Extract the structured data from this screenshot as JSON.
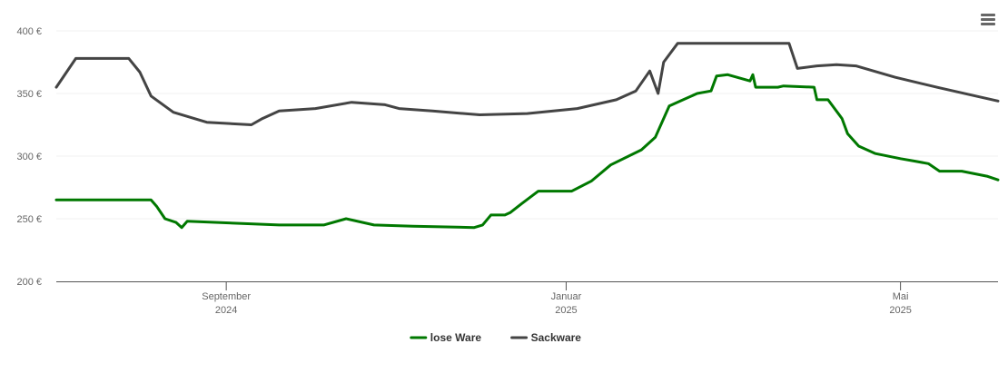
{
  "menu": {
    "icon": "hamburger-menu-icon"
  },
  "chart_data": {
    "type": "line",
    "title": "",
    "xlabel": "",
    "ylabel": "",
    "ylim": [
      200,
      400
    ],
    "y_ticks": [
      "200 €",
      "250 €",
      "300 €",
      "350 €",
      "400 €"
    ],
    "x_ticks": [
      {
        "date": "2024-09-01",
        "month": "September",
        "year": "2024"
      },
      {
        "date": "2025-01-01",
        "month": "Januar",
        "year": "2025"
      },
      {
        "date": "2025-05-01",
        "month": "Mai",
        "year": "2025"
      }
    ],
    "x_range": [
      "2024-07-02",
      "2025-06-05"
    ],
    "grid": "horizontal",
    "legend_position": "bottom-center",
    "series": [
      {
        "name": "lose Ware",
        "color": "#007800",
        "points": [
          [
            "2024-07-02",
            265
          ],
          [
            "2024-08-05",
            265
          ],
          [
            "2024-08-07",
            260
          ],
          [
            "2024-08-10",
            250
          ],
          [
            "2024-08-14",
            247
          ],
          [
            "2024-08-16",
            243
          ],
          [
            "2024-08-18",
            248
          ],
          [
            "2024-09-20",
            245
          ],
          [
            "2024-10-06",
            245
          ],
          [
            "2024-10-14",
            250
          ],
          [
            "2024-10-24",
            245
          ],
          [
            "2024-11-07",
            244
          ],
          [
            "2024-11-29",
            243
          ],
          [
            "2024-12-02",
            245
          ],
          [
            "2024-12-05",
            253
          ],
          [
            "2024-12-10",
            253
          ],
          [
            "2024-12-12",
            255
          ],
          [
            "2024-12-16",
            262
          ],
          [
            "2024-12-22",
            272
          ],
          [
            "2025-01-03",
            272
          ],
          [
            "2025-01-10",
            280
          ],
          [
            "2025-01-17",
            293
          ],
          [
            "2025-01-28",
            305
          ],
          [
            "2025-02-02",
            315
          ],
          [
            "2025-02-05",
            330
          ],
          [
            "2025-02-07",
            340
          ],
          [
            "2025-02-12",
            345
          ],
          [
            "2025-02-17",
            350
          ],
          [
            "2025-02-22",
            352
          ],
          [
            "2025-02-24",
            364
          ],
          [
            "2025-02-28",
            365
          ],
          [
            "2025-03-08",
            360
          ],
          [
            "2025-03-09",
            365
          ],
          [
            "2025-03-10",
            355
          ],
          [
            "2025-03-18",
            355
          ],
          [
            "2025-03-20",
            356
          ],
          [
            "2025-03-31",
            355
          ],
          [
            "2025-04-01",
            345
          ],
          [
            "2025-04-05",
            345
          ],
          [
            "2025-04-10",
            330
          ],
          [
            "2025-04-12",
            318
          ],
          [
            "2025-04-16",
            308
          ],
          [
            "2025-04-22",
            302
          ],
          [
            "2025-05-01",
            298
          ],
          [
            "2025-05-06",
            296
          ],
          [
            "2025-05-11",
            294
          ],
          [
            "2025-05-15",
            288
          ],
          [
            "2025-05-23",
            288
          ],
          [
            "2025-06-01",
            284
          ],
          [
            "2025-06-05",
            281
          ]
        ]
      },
      {
        "name": "Sackware",
        "color": "#444444",
        "points": [
          [
            "2024-07-02",
            355
          ],
          [
            "2024-07-09",
            378
          ],
          [
            "2024-07-28",
            378
          ],
          [
            "2024-08-01",
            367
          ],
          [
            "2024-08-05",
            348
          ],
          [
            "2024-08-13",
            335
          ],
          [
            "2024-08-25",
            327
          ],
          [
            "2024-09-10",
            325
          ],
          [
            "2024-09-14",
            330
          ],
          [
            "2024-09-20",
            336
          ],
          [
            "2024-10-03",
            338
          ],
          [
            "2024-10-16",
            343
          ],
          [
            "2024-10-28",
            341
          ],
          [
            "2024-11-02",
            338
          ],
          [
            "2024-11-14",
            336
          ],
          [
            "2024-12-01",
            333
          ],
          [
            "2024-12-18",
            334
          ],
          [
            "2025-01-05",
            338
          ],
          [
            "2025-01-19",
            345
          ],
          [
            "2025-01-26",
            352
          ],
          [
            "2025-01-31",
            368
          ],
          [
            "2025-02-03",
            350
          ],
          [
            "2025-02-05",
            375
          ],
          [
            "2025-02-10",
            390
          ],
          [
            "2025-03-22",
            390
          ],
          [
            "2025-03-25",
            370
          ],
          [
            "2025-04-01",
            372
          ],
          [
            "2025-04-08",
            373
          ],
          [
            "2025-04-15",
            372
          ],
          [
            "2025-04-29",
            363
          ],
          [
            "2025-05-14",
            355
          ],
          [
            "2025-05-28",
            348
          ],
          [
            "2025-06-05",
            344
          ]
        ]
      }
    ]
  }
}
